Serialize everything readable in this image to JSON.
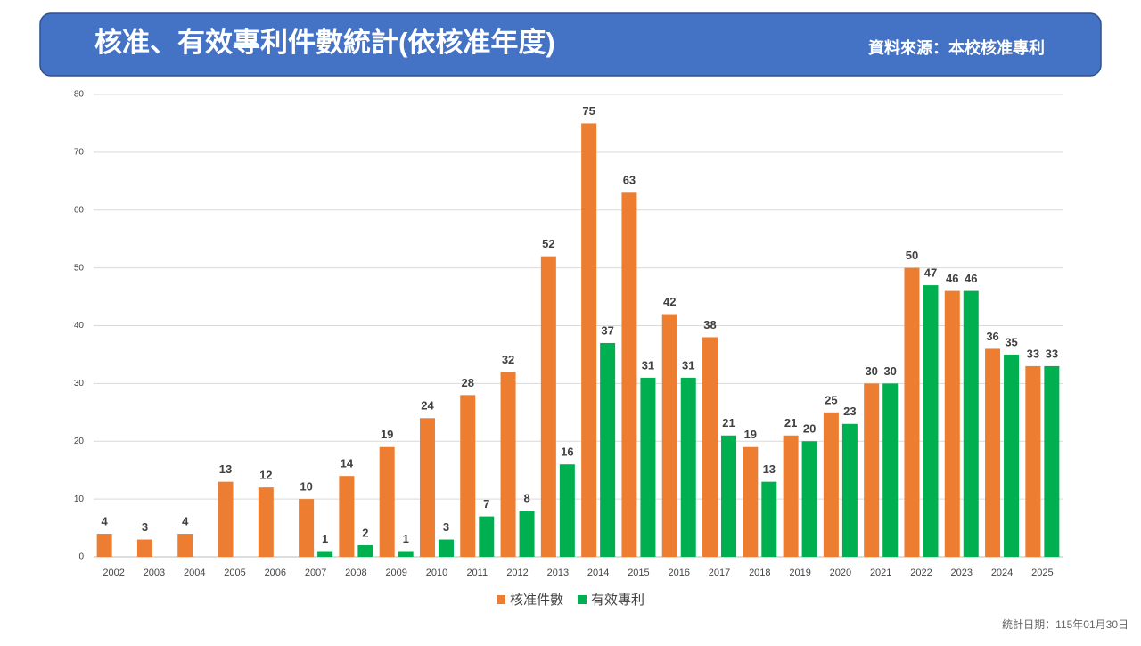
{
  "chart_data": {
    "type": "bar",
    "title": "核准、有效專利件數統計(依核准年度)",
    "source": "資料來源：本校核准專利",
    "note": "統計日期：115年01月30日",
    "categories": [
      "2002",
      "2003",
      "2004",
      "2005",
      "2006",
      "2007",
      "2008",
      "2009",
      "2010",
      "2011",
      "2012",
      "2013",
      "2014",
      "2015",
      "2016",
      "2017",
      "2018",
      "2019",
      "2020",
      "2021",
      "2022",
      "2023",
      "2024",
      "2025"
    ],
    "series": [
      {
        "name": "核准件數",
        "color": "#ed7d31",
        "values": [
          4,
          3,
          4,
          13,
          12,
          10,
          14,
          19,
          24,
          28,
          32,
          52,
          75,
          63,
          42,
          38,
          19,
          21,
          25,
          30,
          50,
          46,
          36,
          33
        ]
      },
      {
        "name": "有效專利",
        "color": "#00b050",
        "values": [
          null,
          null,
          null,
          null,
          null,
          1,
          2,
          1,
          3,
          7,
          8,
          16,
          37,
          31,
          31,
          21,
          13,
          20,
          23,
          30,
          47,
          46,
          35,
          33
        ]
      }
    ],
    "ylim": [
      0,
      80
    ],
    "yticks": [
      0,
      10,
      20,
      30,
      40,
      50,
      60,
      70,
      80
    ],
    "grid": true,
    "legend": "bottom"
  }
}
